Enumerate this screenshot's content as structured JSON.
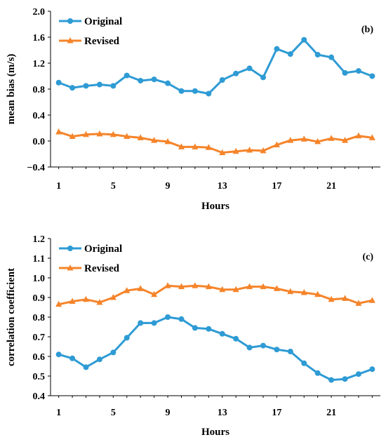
{
  "colors": {
    "original": "#2e9bd4",
    "revised": "#f5842a"
  },
  "chart_data": [
    {
      "type": "line",
      "panel_label": "(b)",
      "x": [
        1,
        2,
        3,
        4,
        5,
        6,
        7,
        8,
        9,
        10,
        11,
        12,
        13,
        14,
        15,
        16,
        17,
        18,
        19,
        20,
        21,
        22,
        23,
        24
      ],
      "x_ticks": [
        1,
        5,
        9,
        13,
        17,
        21
      ],
      "xlim": [
        0.4,
        24.6
      ],
      "xlabel": "Hours",
      "ylabel": "mean bias (m/s)",
      "ylim": [
        -0.4,
        2.0
      ],
      "y_ticks": [
        "−0.4",
        "0.0",
        "0.4",
        "0.8",
        "1.2",
        "1.6",
        "2.0"
      ],
      "y_tick_values": [
        -0.4,
        0.0,
        0.4,
        0.8,
        1.2,
        1.6,
        2.0
      ],
      "legend": "top-left",
      "series": [
        {
          "name": "Original",
          "marker": "circle",
          "values": [
            0.9,
            0.82,
            0.85,
            0.87,
            0.85,
            1.01,
            0.93,
            0.95,
            0.89,
            0.77,
            0.77,
            0.73,
            0.94,
            1.04,
            1.12,
            0.98,
            1.42,
            1.34,
            1.56,
            1.33,
            1.29,
            1.05,
            1.08,
            1.0
          ]
        },
        {
          "name": "Revised",
          "marker": "triangle",
          "values": [
            0.14,
            0.07,
            0.1,
            0.11,
            0.1,
            0.07,
            0.05,
            0.01,
            -0.01,
            -0.09,
            -0.09,
            -0.1,
            -0.18,
            -0.16,
            -0.14,
            -0.15,
            -0.06,
            0.01,
            0.03,
            -0.01,
            0.04,
            0.01,
            0.08,
            0.05
          ]
        }
      ]
    },
    {
      "type": "line",
      "panel_label": "(c)",
      "x": [
        1,
        2,
        3,
        4,
        5,
        6,
        7,
        8,
        9,
        10,
        11,
        12,
        13,
        14,
        15,
        16,
        17,
        18,
        19,
        20,
        21,
        22,
        23,
        24
      ],
      "x_ticks": [
        1,
        5,
        9,
        13,
        17,
        21
      ],
      "xlim": [
        0.4,
        24.6
      ],
      "xlabel": "Hours",
      "ylabel": "correlation coefficient",
      "ylim": [
        0.4,
        1.2
      ],
      "y_ticks": [
        "0.4",
        "0.5",
        "0.6",
        "0.7",
        "0.8",
        "0.9",
        "1.0",
        "1.1",
        "1.2"
      ],
      "y_tick_values": [
        0.4,
        0.5,
        0.6,
        0.7,
        0.8,
        0.9,
        1.0,
        1.1,
        1.2
      ],
      "legend": "top-left",
      "series": [
        {
          "name": "Original",
          "marker": "circle",
          "values": [
            0.61,
            0.59,
            0.545,
            0.585,
            0.62,
            0.695,
            0.77,
            0.77,
            0.8,
            0.79,
            0.745,
            0.74,
            0.715,
            0.69,
            0.645,
            0.655,
            0.635,
            0.625,
            0.565,
            0.515,
            0.48,
            0.485,
            0.51,
            0.535
          ]
        },
        {
          "name": "Revised",
          "marker": "triangle",
          "values": [
            0.865,
            0.88,
            0.89,
            0.875,
            0.9,
            0.935,
            0.945,
            0.915,
            0.96,
            0.955,
            0.96,
            0.955,
            0.94,
            0.94,
            0.955,
            0.955,
            0.945,
            0.93,
            0.925,
            0.915,
            0.89,
            0.895,
            0.87,
            0.885
          ]
        }
      ]
    }
  ]
}
